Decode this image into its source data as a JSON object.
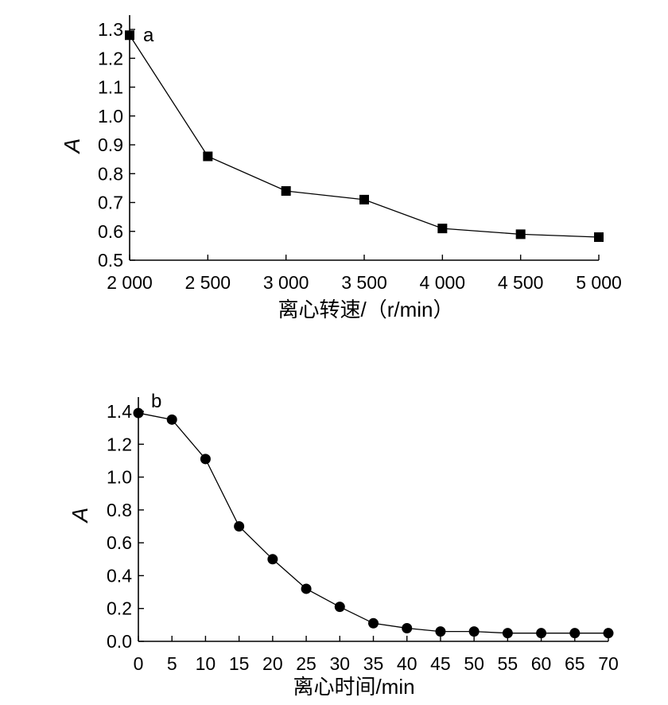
{
  "chart_data": [
    {
      "type": "line",
      "panel_label": "a",
      "xlabel": "离心转速/（r/min）",
      "ylabel": "A",
      "x": [
        2000,
        2500,
        3000,
        3500,
        4000,
        4500,
        5000
      ],
      "x_tick_labels": [
        "2 000",
        "2 500",
        "3 000",
        "3 500",
        "4 000",
        "4 500",
        "5 000"
      ],
      "xlim": [
        2000,
        5000
      ],
      "ylim": [
        0.5,
        1.3
      ],
      "y_ticks": [
        "0.5",
        "0.6",
        "0.7",
        "0.8",
        "0.9",
        "1.0",
        "1.1",
        "1.2",
        "1.3"
      ],
      "marker": "square",
      "grid": false,
      "series": [
        {
          "values": [
            1.28,
            0.86,
            0.74,
            0.71,
            0.61,
            0.59,
            0.58
          ]
        }
      ]
    },
    {
      "type": "line",
      "panel_label": "b",
      "xlabel": "离心时间/min",
      "ylabel": "A",
      "x": [
        0,
        5,
        10,
        15,
        20,
        25,
        30,
        35,
        40,
        45,
        50,
        55,
        60,
        65,
        70
      ],
      "x_tick_labels": [
        "0",
        "5",
        "10",
        "15",
        "20",
        "25",
        "30",
        "35",
        "40",
        "45",
        "50",
        "55",
        "60",
        "65",
        "70"
      ],
      "xlim": [
        0,
        70
      ],
      "ylim": [
        0,
        1.4
      ],
      "y_ticks": [
        "0.0",
        "0.2",
        "0.4",
        "0.6",
        "0.8",
        "1.0",
        "1.2",
        "1.4"
      ],
      "marker": "circle",
      "grid": false,
      "series": [
        {
          "values": [
            1.39,
            1.35,
            1.11,
            0.7,
            0.5,
            0.32,
            0.21,
            0.11,
            0.08,
            0.06,
            0.06,
            0.05,
            0.05,
            0.05,
            0.05
          ]
        }
      ]
    }
  ]
}
